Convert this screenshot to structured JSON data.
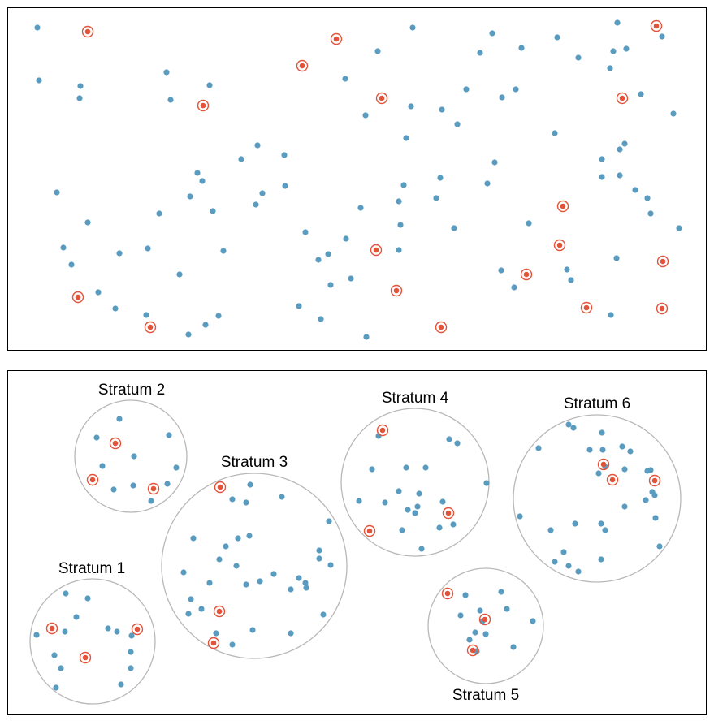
{
  "colors": {
    "point": "#5a9bc0",
    "sampled": "#e2533a",
    "stratum_outline": "#b8b8b8",
    "frame": "#000000"
  },
  "top_panel": {},
  "bottom_panel": {
    "strata": [
      {
        "label": "Stratum 1"
      },
      {
        "label": "Stratum 2"
      },
      {
        "label": "Stratum 3"
      },
      {
        "label": "Stratum 4"
      },
      {
        "label": "Stratum 5"
      },
      {
        "label": "Stratum 6"
      }
    ]
  }
}
